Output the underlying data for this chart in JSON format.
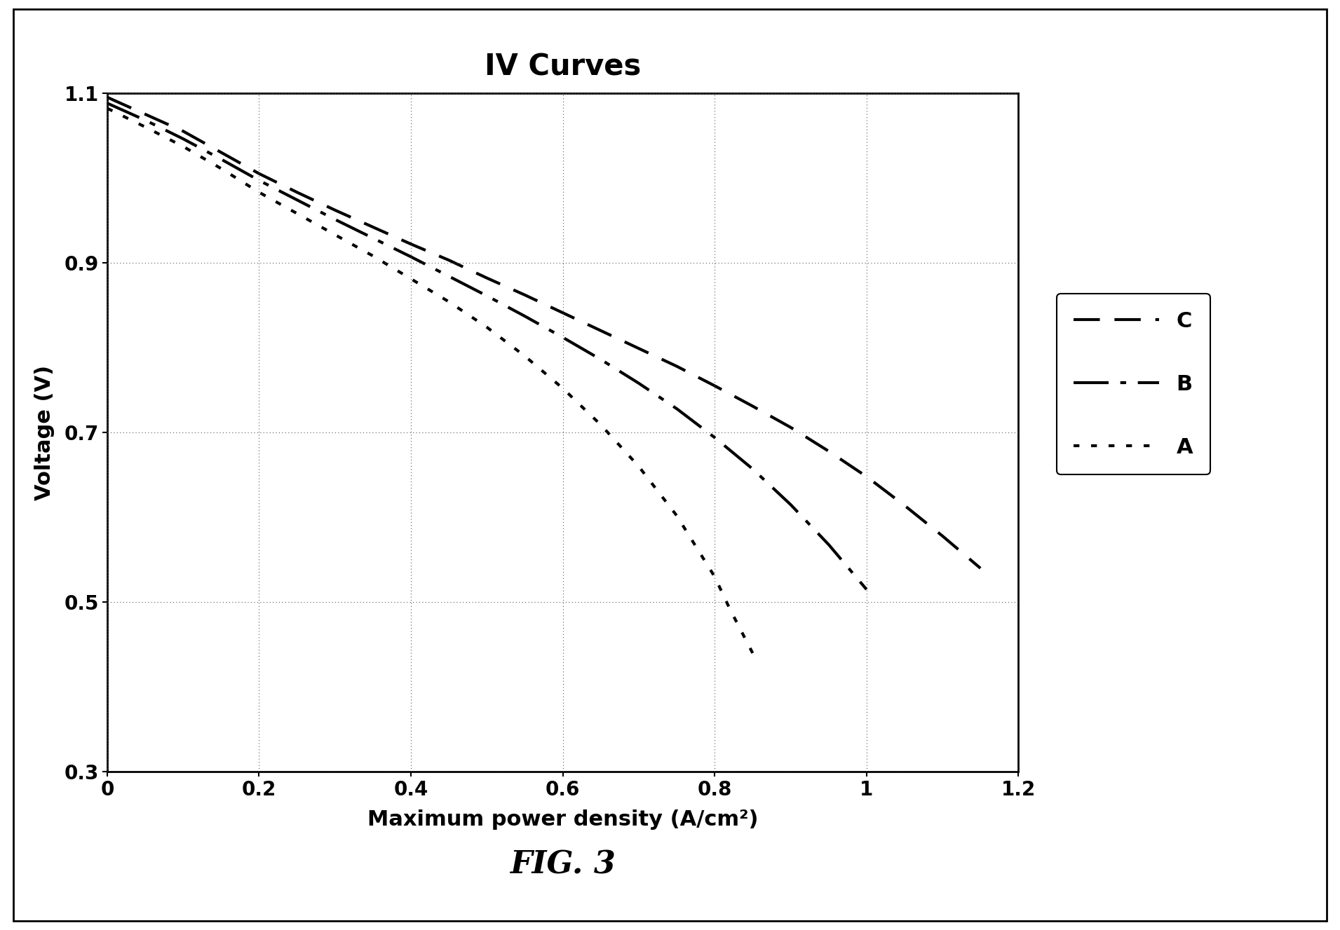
{
  "title": "IV Curves",
  "xlabel": "Maximum power density (A/cm²)",
  "ylabel": "Voltage (V)",
  "fig_label": "FIG. 3",
  "xlim": [
    0,
    1.2
  ],
  "ylim": [
    0.3,
    1.1
  ],
  "xticks": [
    0,
    0.2,
    0.4,
    0.6,
    0.8,
    1.0,
    1.2
  ],
  "yticks": [
    0.3,
    0.5,
    0.7,
    0.9,
    1.1
  ],
  "series_C": {
    "x": [
      0.0,
      0.05,
      0.1,
      0.15,
      0.2,
      0.25,
      0.3,
      0.35,
      0.4,
      0.45,
      0.5,
      0.55,
      0.6,
      0.65,
      0.7,
      0.75,
      0.8,
      0.85,
      0.9,
      0.95,
      1.0,
      1.05,
      1.1,
      1.15
    ],
    "y": [
      1.095,
      1.075,
      1.055,
      1.03,
      1.005,
      0.983,
      0.962,
      0.942,
      0.922,
      0.903,
      0.882,
      0.862,
      0.841,
      0.82,
      0.799,
      0.778,
      0.755,
      0.731,
      0.706,
      0.678,
      0.648,
      0.614,
      0.578,
      0.54
    ],
    "label": "C"
  },
  "series_B": {
    "x": [
      0.0,
      0.05,
      0.1,
      0.15,
      0.2,
      0.25,
      0.3,
      0.35,
      0.4,
      0.45,
      0.5,
      0.55,
      0.6,
      0.65,
      0.7,
      0.75,
      0.8,
      0.85,
      0.9,
      0.95,
      1.0
    ],
    "y": [
      1.088,
      1.068,
      1.046,
      1.022,
      0.997,
      0.974,
      0.951,
      0.929,
      0.907,
      0.884,
      0.861,
      0.837,
      0.812,
      0.786,
      0.758,
      0.728,
      0.694,
      0.657,
      0.615,
      0.568,
      0.515
    ],
    "label": "B"
  },
  "series_A": {
    "x": [
      0.0,
      0.05,
      0.1,
      0.15,
      0.2,
      0.25,
      0.3,
      0.35,
      0.4,
      0.45,
      0.5,
      0.55,
      0.6,
      0.65,
      0.7,
      0.75,
      0.8,
      0.82,
      0.85
    ],
    "y": [
      1.082,
      1.06,
      1.037,
      1.011,
      0.983,
      0.958,
      0.933,
      0.908,
      0.881,
      0.854,
      0.824,
      0.79,
      0.752,
      0.709,
      0.66,
      0.602,
      0.53,
      0.492,
      0.44
    ],
    "label": "A"
  },
  "linewidth": 3.0,
  "color": "#000000",
  "dash_C": [
    9,
    5
  ],
  "dash_B": [
    12,
    4,
    2,
    4
  ],
  "dash_A": [
    2,
    4
  ],
  "grid_color": "#555555",
  "grid_linewidth": 0.8,
  "title_fontsize": 30,
  "label_fontsize": 22,
  "tick_fontsize": 20,
  "legend_fontsize": 22,
  "fig_label_fontsize": 32,
  "background_color": "#ffffff"
}
